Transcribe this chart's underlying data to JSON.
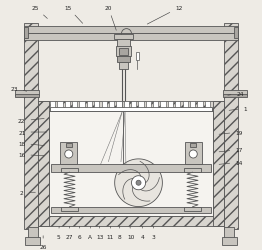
{
  "bg_color": "#eeebe5",
  "line_color": "#555555",
  "frame_color": "#c8c5bf",
  "hatch_fill": "#d8d5cf",
  "inner_fill": "#f5f3ef",
  "dark_fill": "#a8a5a0",
  "figsize": [
    2.62,
    2.51
  ],
  "dpi": 100,
  "labels_data": {
    "25": [
      0.12,
      0.965,
      0.175,
      0.915
    ],
    "15": [
      0.25,
      0.965,
      0.315,
      0.895
    ],
    "20": [
      0.41,
      0.965,
      0.445,
      0.865
    ],
    "12": [
      0.69,
      0.965,
      0.555,
      0.895
    ],
    "23": [
      0.035,
      0.645,
      0.095,
      0.63
    ],
    "24": [
      0.935,
      0.625,
      0.875,
      0.615
    ],
    "1": [
      0.955,
      0.565,
      0.88,
      0.555
    ],
    "22": [
      0.065,
      0.515,
      0.165,
      0.525
    ],
    "21": [
      0.065,
      0.47,
      0.175,
      0.47
    ],
    "18": [
      0.065,
      0.425,
      0.165,
      0.415
    ],
    "16": [
      0.065,
      0.38,
      0.165,
      0.375
    ],
    "2": [
      0.065,
      0.23,
      0.13,
      0.23
    ],
    "19": [
      0.93,
      0.47,
      0.84,
      0.46
    ],
    "17": [
      0.93,
      0.4,
      0.84,
      0.39
    ],
    "14": [
      0.93,
      0.35,
      0.84,
      0.34
    ],
    "5": [
      0.21,
      0.055,
      0.215,
      0.105
    ],
    "27": [
      0.255,
      0.055,
      0.255,
      0.105
    ],
    "6": [
      0.295,
      0.055,
      0.295,
      0.105
    ],
    "A": [
      0.335,
      0.055,
      0.34,
      0.105
    ],
    "13": [
      0.375,
      0.055,
      0.375,
      0.105
    ],
    "11": [
      0.415,
      0.055,
      0.42,
      0.105
    ],
    "8": [
      0.455,
      0.055,
      0.455,
      0.105
    ],
    "10": [
      0.5,
      0.055,
      0.495,
      0.105
    ],
    "4": [
      0.545,
      0.055,
      0.545,
      0.105
    ],
    "3": [
      0.59,
      0.055,
      0.59,
      0.105
    ],
    "26": [
      0.15,
      0.015,
      0.15,
      0.068
    ]
  }
}
